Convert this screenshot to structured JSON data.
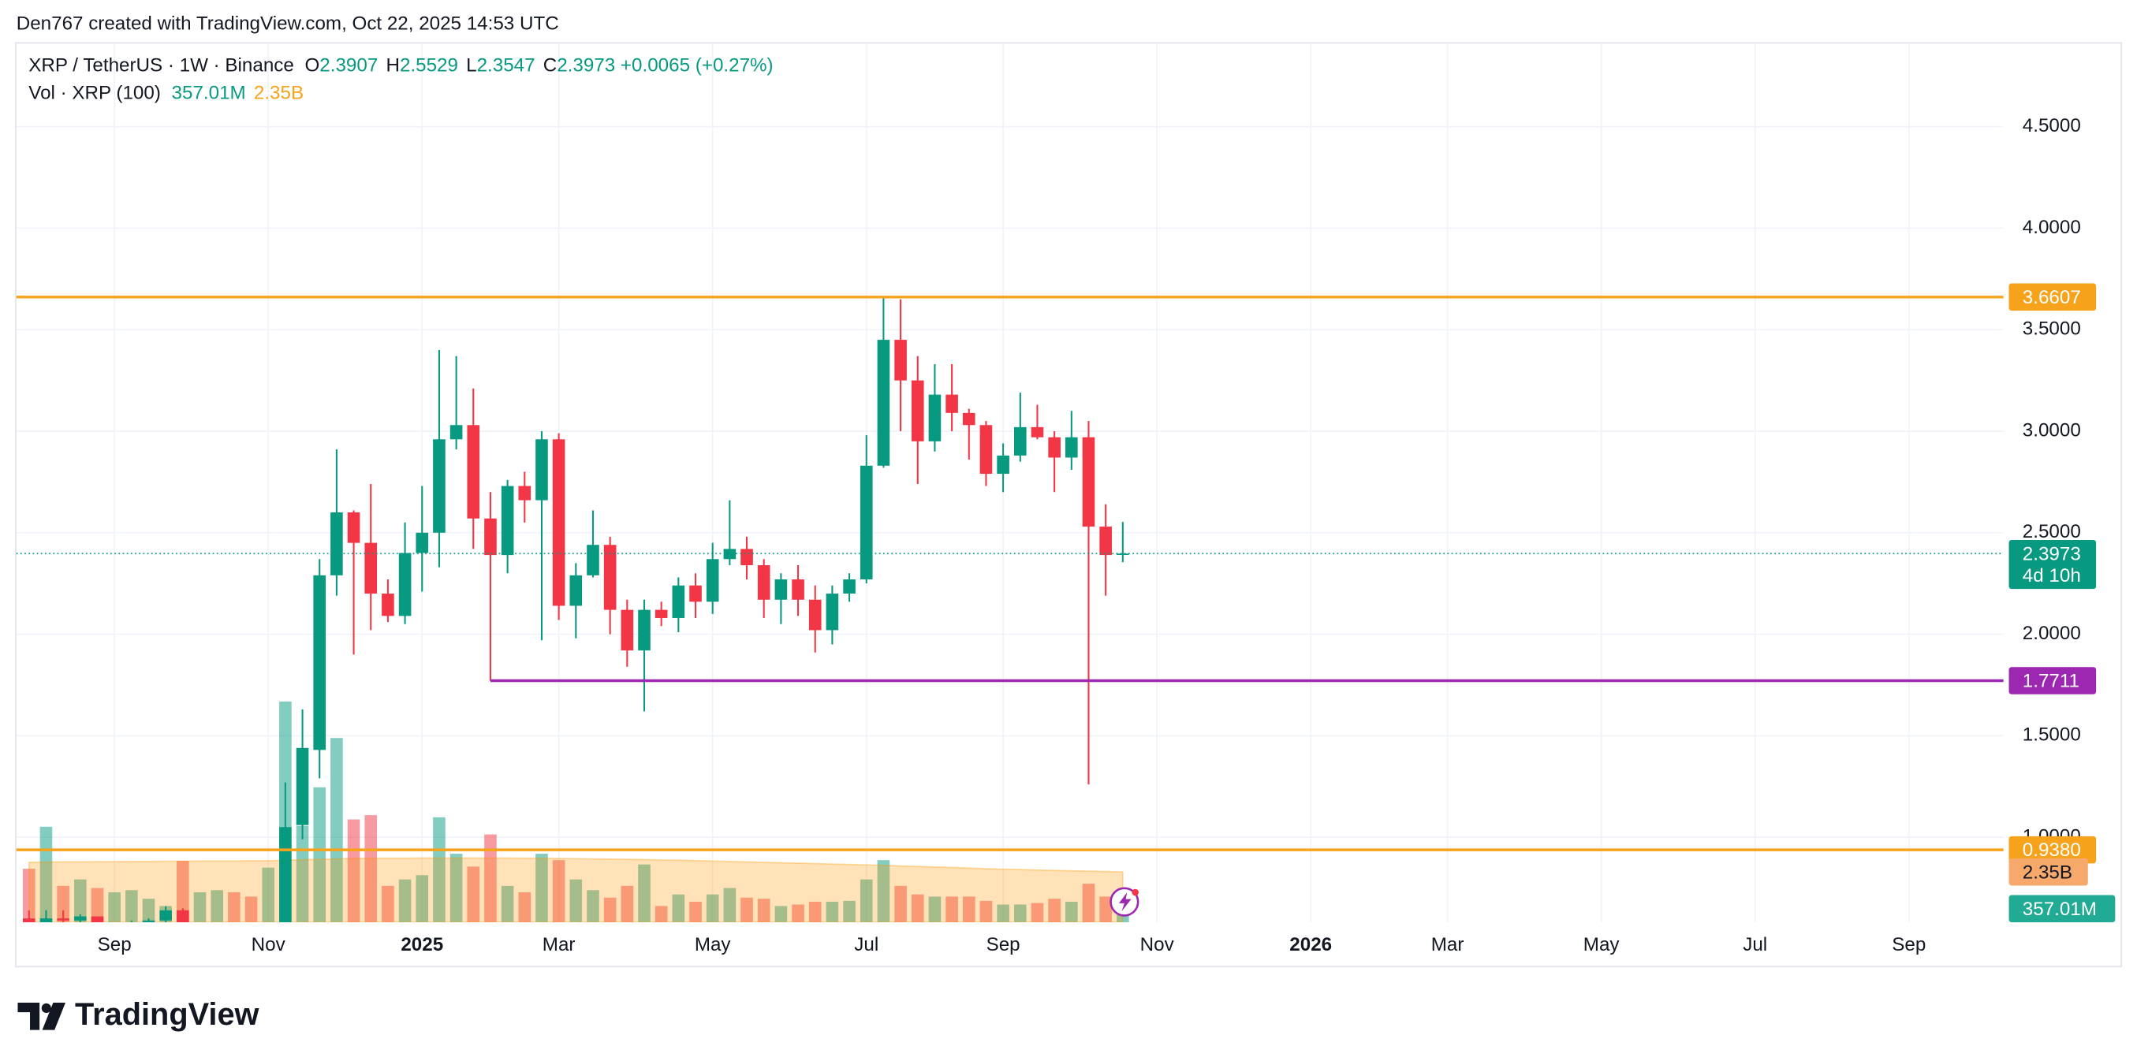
{
  "header": {
    "attribution": "Den767 created with TradingView.com, Oct 22, 2025 14:53 UTC"
  },
  "footer": {
    "logo": "TradingView"
  },
  "chart_data": {
    "type": "candlestick",
    "legend": {
      "symbol": "XRP / TetherUS · 1W · Binance",
      "ohlc_labels": [
        "O",
        "H",
        "L",
        "C"
      ],
      "change": "+0.0065 (+0.27%)"
    },
    "countdown": "4d 10h",
    "up_color": "#089981",
    "down_color": "#f23645",
    "open": [
      0.6,
      0.53,
      0.6,
      0.59,
      0.61,
      0.56,
      0.56,
      0.58,
      0.59,
      0.64,
      0.53,
      0.54,
      0.55,
      0.54,
      0.5,
      0.56,
      1.06,
      1.43,
      2.29,
      2.6,
      2.45,
      2.2,
      2.09,
      2.4,
      2.5,
      2.96,
      3.03,
      2.57,
      2.39,
      2.73,
      2.66,
      2.96,
      2.14,
      2.29,
      2.44,
      2.12,
      1.92,
      2.12,
      2.08,
      2.24,
      2.16,
      2.37,
      2.42,
      2.34,
      2.17,
      2.27,
      2.17,
      2.02,
      2.2,
      2.27,
      2.83,
      3.45,
      3.25,
      2.95,
      3.18,
      3.09,
      3.03,
      2.79,
      2.88,
      3.02,
      2.97,
      2.87,
      2.97,
      2.53,
      2.3907
    ],
    "high": [
      0.64,
      0.64,
      0.64,
      0.62,
      0.61,
      0.58,
      0.59,
      0.6,
      0.66,
      0.65,
      0.56,
      0.57,
      0.56,
      0.55,
      0.57,
      1.27,
      1.63,
      2.37,
      2.91,
      2.61,
      2.74,
      2.27,
      2.55,
      2.73,
      3.4,
      3.37,
      3.21,
      2.7,
      2.76,
      2.8,
      3.0,
      2.99,
      2.35,
      2.61,
      2.48,
      2.17,
      2.17,
      2.16,
      2.28,
      2.3,
      2.45,
      2.66,
      2.48,
      2.37,
      2.3,
      2.34,
      2.24,
      2.24,
      2.3,
      2.98,
      3.66,
      3.65,
      3.37,
      3.33,
      3.33,
      3.11,
      3.05,
      2.94,
      3.19,
      3.13,
      3.0,
      3.1,
      3.05,
      2.64,
      2.5529
    ],
    "low": [
      0.5,
      0.43,
      0.55,
      0.55,
      0.55,
      0.5,
      0.54,
      0.56,
      0.58,
      0.51,
      0.52,
      0.53,
      0.52,
      0.49,
      0.49,
      0.55,
      0.99,
      1.29,
      2.19,
      1.9,
      2.02,
      2.06,
      2.05,
      2.21,
      2.33,
      2.91,
      2.42,
      1.77,
      2.3,
      2.55,
      1.97,
      2.07,
      1.98,
      2.28,
      2.0,
      1.84,
      1.62,
      2.04,
      2.01,
      2.08,
      2.1,
      2.34,
      2.27,
      2.08,
      2.05,
      2.09,
      1.91,
      1.95,
      2.16,
      2.25,
      2.82,
      3.0,
      2.74,
      2.9,
      3.0,
      2.86,
      2.73,
      2.7,
      2.85,
      2.96,
      2.7,
      2.81,
      1.26,
      2.19,
      2.3547
    ],
    "close": [
      0.53,
      0.6,
      0.59,
      0.61,
      0.56,
      0.57,
      0.58,
      0.59,
      0.64,
      0.53,
      0.54,
      0.55,
      0.54,
      0.5,
      0.56,
      1.05,
      1.44,
      2.29,
      2.6,
      2.45,
      2.2,
      2.09,
      2.4,
      2.5,
      2.96,
      3.03,
      2.57,
      2.39,
      2.73,
      2.66,
      2.96,
      2.14,
      2.29,
      2.44,
      2.12,
      1.92,
      2.12,
      2.08,
      2.24,
      2.16,
      2.37,
      2.42,
      2.34,
      2.17,
      2.27,
      2.17,
      2.02,
      2.2,
      2.27,
      2.83,
      3.45,
      3.25,
      2.95,
      3.18,
      3.09,
      3.03,
      2.79,
      2.88,
      3.02,
      2.97,
      2.87,
      2.97,
      2.53,
      2.39,
      2.3973
    ],
    "xlim": [
      -0.74,
      115.53
    ],
    "xticks": [
      {
        "value": 5,
        "label": "Sep"
      },
      {
        "value": 14,
        "label": "Nov"
      },
      {
        "value": 23,
        "label": "2025"
      },
      {
        "value": 31,
        "label": "Mar"
      },
      {
        "value": 40,
        "label": "May"
      },
      {
        "value": 49,
        "label": "Jul"
      },
      {
        "value": 57,
        "label": "Sep"
      },
      {
        "value": 66,
        "label": "Nov"
      },
      {
        "value": 75,
        "label": "2026"
      },
      {
        "value": 83,
        "label": "Mar"
      },
      {
        "value": 92,
        "label": "May"
      },
      {
        "value": 101,
        "label": "Jul"
      },
      {
        "value": 110,
        "label": "Sep"
      }
    ],
    "ylim": [
      0.581,
      4.909
    ],
    "yticks": [
      {
        "value": 1,
        "label": "1.0000"
      },
      {
        "value": 1.5,
        "label": "1.5000"
      },
      {
        "value": 2,
        "label": "2.0000"
      },
      {
        "value": 2.5,
        "label": "2.5000"
      },
      {
        "value": 3,
        "label": "3.0000"
      },
      {
        "value": 3.5,
        "label": "3.5000"
      },
      {
        "value": 4,
        "label": "4.0000"
      },
      {
        "value": 4.5,
        "label": "4.5000"
      }
    ],
    "grid": true,
    "levels": [
      {
        "value": 3.6607,
        "color": "#f7a21b"
      },
      {
        "value": 1.7711,
        "color": "#9c27b0",
        "x_start": 27
      },
      {
        "value": 0.938,
        "label": "0.9380",
        "color": "#f7a21b"
      }
    ],
    "volume": {
      "name": "Vol · XRP (100)",
      "up_color": "rgba(8,153,129,0.5)",
      "down_color": "rgba(242,54,69,0.5)",
      "ylim": [
        0,
        41000000000
      ],
      "values": [
        2500000000,
        4460000000,
        1700000000,
        2000000000,
        1600000000,
        1400000000,
        1500000000,
        1100000000,
        760000000,
        2870000000,
        1400000000,
        1500000000,
        1400000000,
        1200000000,
        2550000000,
        10300000000,
        4500000000,
        6300000000,
        8600000000,
        4800000000,
        5000000000,
        1700000000,
        2000000000,
        2200000000,
        4900000000,
        3200000000,
        2600000000,
        4100000000,
        1700000000,
        1400000000,
        3200000000,
        2900000000,
        2000000000,
        1500000000,
        1150000000,
        1700000000,
        2700000000,
        760000000,
        1300000000,
        960000000,
        1300000000,
        1600000000,
        1150000000,
        1100000000,
        760000000,
        830000000,
        960000000,
        960000000,
        1000000000,
        2000000000,
        2900000000,
        1700000000,
        1300000000,
        1200000000,
        1200000000,
        1200000000,
        1000000000,
        830000000,
        830000000,
        900000000,
        1100000000,
        960000000,
        1800000000,
        1200000000,
        357010000
      ],
      "value_labels": [
        null,
        null,
        null,
        null,
        null,
        null,
        null,
        null,
        null,
        null,
        null,
        null,
        null,
        null,
        null,
        null,
        null,
        null,
        null,
        null,
        null,
        null,
        null,
        null,
        null,
        null,
        null,
        null,
        null,
        null,
        null,
        null,
        null,
        null,
        null,
        null,
        null,
        null,
        null,
        null,
        null,
        null,
        null,
        null,
        null,
        null,
        null,
        null,
        null,
        null,
        null,
        null,
        null,
        null,
        null,
        null,
        null,
        null,
        null,
        null,
        null,
        null,
        null,
        null,
        "357.01M"
      ],
      "ma": {
        "color": "#ff9800",
        "values": [
          2800000000,
          2810000000,
          2820000000,
          2820000000,
          2830000000,
          2830000000,
          2840000000,
          2840000000,
          2850000000,
          2850000000,
          2860000000,
          2860000000,
          2860000000,
          2870000000,
          2870000000,
          2900000000,
          2920000000,
          2940000000,
          2960000000,
          2980000000,
          2990000000,
          2990000000,
          2990000000,
          3000000000,
          3000000000,
          3000000000,
          3000000000,
          3000000000,
          3000000000,
          2990000000,
          2990000000,
          2980000000,
          2970000000,
          2960000000,
          2950000000,
          2940000000,
          2930000000,
          2910000000,
          2900000000,
          2880000000,
          2860000000,
          2840000000,
          2820000000,
          2800000000,
          2780000000,
          2760000000,
          2740000000,
          2720000000,
          2700000000,
          2680000000,
          2660000000,
          2630000000,
          2610000000,
          2580000000,
          2560000000,
          2530000000,
          2500000000,
          2480000000,
          2460000000,
          2440000000,
          2420000000,
          2400000000,
          2390000000,
          2370000000,
          2350000000
        ],
        "value_labels": [
          null,
          null,
          null,
          null,
          null,
          null,
          null,
          null,
          null,
          null,
          null,
          null,
          null,
          null,
          null,
          null,
          null,
          null,
          null,
          null,
          null,
          null,
          null,
          null,
          null,
          null,
          null,
          null,
          null,
          null,
          null,
          null,
          null,
          null,
          null,
          null,
          null,
          null,
          null,
          null,
          null,
          null,
          null,
          null,
          null,
          null,
          null,
          null,
          null,
          null,
          null,
          null,
          null,
          null,
          null,
          null,
          null,
          null,
          null,
          null,
          null,
          null,
          null,
          null,
          "2.35B"
        ]
      }
    }
  }
}
